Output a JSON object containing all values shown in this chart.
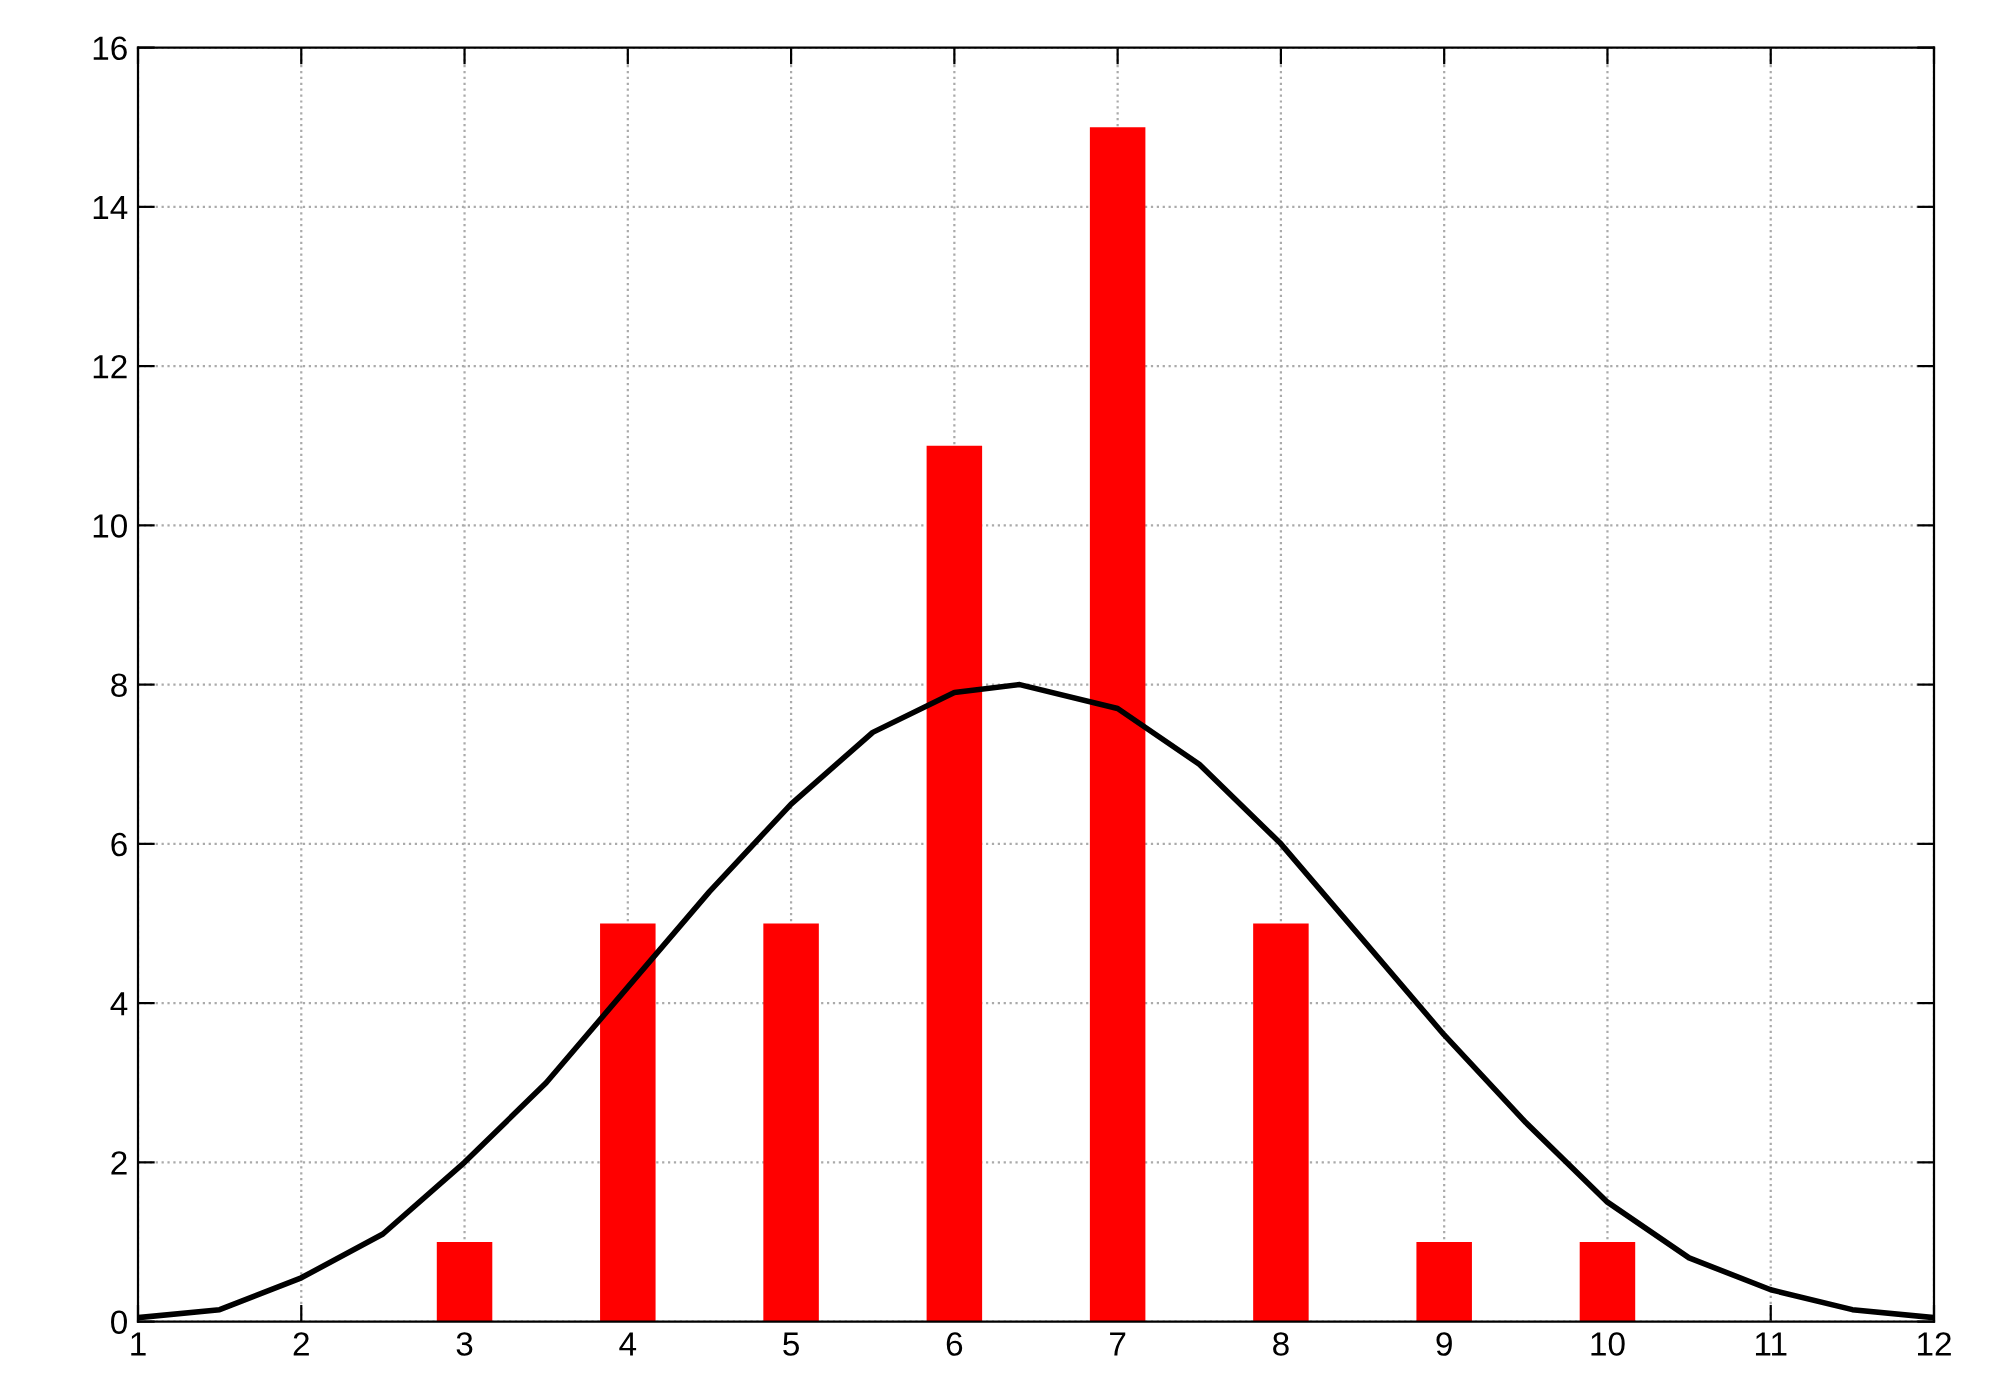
{
  "chart_data": {
    "type": "bar",
    "xlim": [
      1,
      12
    ],
    "xticks": [
      1,
      2,
      3,
      4,
      5,
      6,
      7,
      8,
      9,
      10,
      11,
      12
    ],
    "ylim": [
      0,
      16
    ],
    "yticks": [
      0,
      2,
      4,
      6,
      8,
      10,
      12,
      14,
      16
    ],
    "grid": true,
    "legend": false,
    "series": [
      {
        "color": "#ff0000",
        "x": [
          3,
          4,
          5,
          6,
          7,
          8,
          9,
          10
        ],
        "values": [
          1,
          5,
          5,
          11,
          15,
          5,
          1,
          1
        ]
      },
      {
        "type": "line",
        "color": "#000000",
        "x": [
          1,
          1.5,
          2,
          2.5,
          3,
          3.5,
          4,
          4.5,
          5,
          5.5,
          6,
          6.4,
          7,
          7.5,
          8,
          8.5,
          9,
          9.5,
          10,
          10.5,
          11,
          11.5,
          12
        ],
        "values": [
          0.05,
          0.15,
          0.55,
          1.1,
          2.0,
          3.0,
          4.2,
          5.4,
          6.5,
          7.4,
          7.9,
          8.0,
          7.7,
          7.0,
          6.0,
          4.8,
          3.6,
          2.5,
          1.5,
          0.8,
          0.4,
          0.15,
          0.05
        ]
      }
    ]
  }
}
